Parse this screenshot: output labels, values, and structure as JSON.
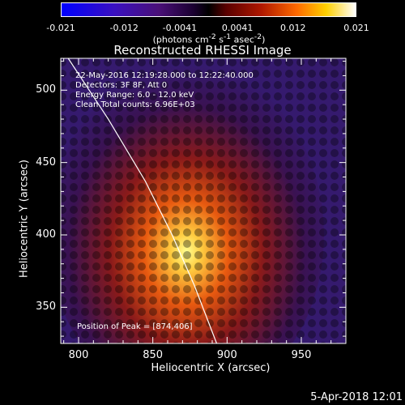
{
  "colorbar": {
    "ticks": [
      "-0.021",
      "-0.012",
      "-0.0041",
      "0.0041",
      "0.012",
      "0.021"
    ],
    "tick_values": [
      -0.021,
      -0.012,
      -0.0041,
      0.0041,
      0.012,
      0.021
    ],
    "range": [
      -0.021,
      0.021
    ],
    "units_html": "(photons cm<sup>-2</sup> s<sup>-1</sup> asec<sup>-2</sup>)"
  },
  "title": "Reconstructed RHESSI Image",
  "annotations": {
    "line1": "22-May-2016 12:19:28.000 to 12:22:40.000",
    "line2": "Detectors: 3F 8F, Att 0",
    "line3": "Energy Range: 6.0 - 12.0 keV",
    "line4": "Clean     Total counts: 6.96E+03",
    "peak": "Position of Peak = [874,406]"
  },
  "footer": "5-Apr-2018 12:01",
  "chart_data": {
    "type": "heatmap",
    "title": "Reconstructed RHESSI Image",
    "xlabel": "Heliocentric X (arcsec)",
    "ylabel": "Heliocentric Y (arcsec)",
    "xlim": [
      788,
      980
    ],
    "ylim": [
      325,
      522
    ],
    "xticks": [
      800,
      850,
      900,
      950
    ],
    "yticks": [
      350,
      400,
      450,
      500
    ],
    "xtick_labels": [
      "800",
      "850",
      "900",
      "950"
    ],
    "ytick_labels": [
      "350",
      "400",
      "450",
      "500"
    ],
    "peak": [
      874,
      406
    ],
    "limb_arc": [
      [
        793,
        522
      ],
      [
        820,
        480
      ],
      [
        845,
        437
      ],
      [
        863,
        400
      ],
      [
        878,
        365
      ],
      [
        893,
        325
      ]
    ],
    "colormap": "hot with blue/purple negative"
  }
}
